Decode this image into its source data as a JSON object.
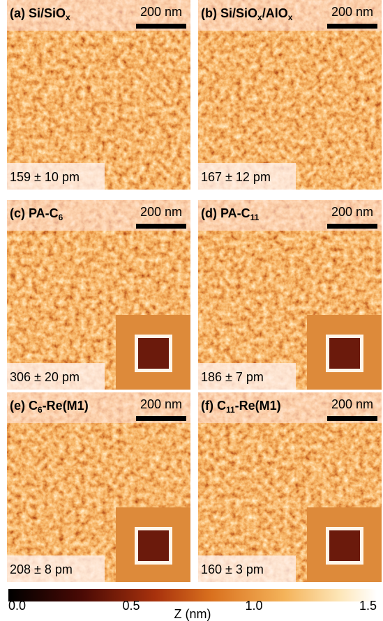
{
  "panels": [
    {
      "label": [
        {
          "t": "(a) Si/SiO",
          "sub": false
        },
        {
          "t": "x",
          "sub": true
        }
      ],
      "scale": "200 nm",
      "roughness": "159 ± 10 pm",
      "inset": false
    },
    {
      "label": [
        {
          "t": "(b) Si/SiO",
          "sub": false
        },
        {
          "t": "x",
          "sub": true
        },
        {
          "t": "/AlO",
          "sub": false
        },
        {
          "t": "x",
          "sub": true
        }
      ],
      "scale": "200 nm",
      "roughness": "167 ± 12 pm",
      "inset": false
    },
    {
      "label": [
        {
          "t": "(c) PA-C",
          "sub": false
        },
        {
          "t": "6",
          "sub": true
        }
      ],
      "scale": "200 nm",
      "roughness": "306 ± 20 pm",
      "inset": true
    },
    {
      "label": [
        {
          "t": "(d) PA-C",
          "sub": false
        },
        {
          "t": "11",
          "sub": true
        }
      ],
      "scale": "200 nm",
      "roughness": "186 ± 7 pm",
      "inset": true
    },
    {
      "label": [
        {
          "t": "(e) C",
          "sub": false
        },
        {
          "t": "6",
          "sub": true
        },
        {
          "t": "-Re(M1)",
          "sub": false
        }
      ],
      "scale": "200 nm",
      "roughness": "208 ± 8 pm",
      "inset": true
    },
    {
      "label": [
        {
          "t": "(f) C",
          "sub": false
        },
        {
          "t": "11",
          "sub": true
        },
        {
          "t": "-Re(M1)",
          "sub": false
        }
      ],
      "scale": "200 nm",
      "roughness": "160 ± 3 pm",
      "inset": true
    }
  ],
  "colorbar": {
    "label": "Z (nm)",
    "lim": [
      0,
      1.5
    ],
    "ticks": [
      {
        "value": 0,
        "label": "0.0"
      },
      0.5,
      {
        "value": 1,
        "label": "1.0"
      },
      1.5
    ]
  }
}
